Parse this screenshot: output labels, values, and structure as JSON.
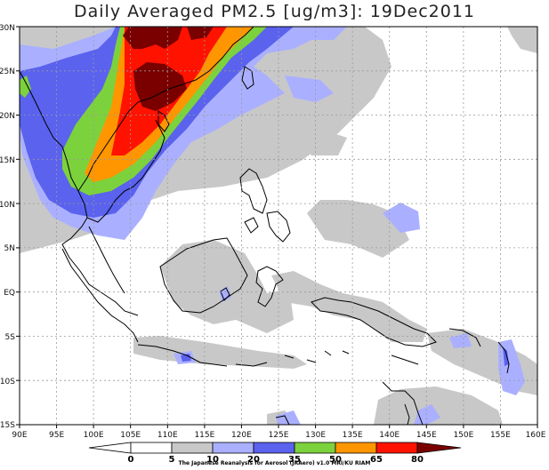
{
  "title": "Daily Averaged PM2.5 [ug/m3]: 19Dec2011",
  "axes": {
    "x_ticks": [
      "90E",
      "95E",
      "100E",
      "105E",
      "110E",
      "115E",
      "120E",
      "125E",
      "130E",
      "135E",
      "140E",
      "145E",
      "150E",
      "155E",
      "160E"
    ],
    "y_ticks": [
      "30N",
      "25N",
      "20N",
      "15N",
      "10N",
      "5N",
      "EQ",
      "5S",
      "10S",
      "15S"
    ]
  },
  "colorbar": {
    "labels": [
      "0",
      "5",
      "10",
      "20",
      "35",
      "50",
      "65",
      "80"
    ],
    "colors": [
      "#ffffff",
      "#c8c8c8",
      "#aab0ff",
      "#5a62ee",
      "#7cd23c",
      "#ff9600",
      "#ff1200",
      "#7a0000"
    ]
  },
  "credit": "The Japanese Reanalysis for Aerosol (JRAero) v1.0 MRI/KU RIAM",
  "colors": {
    "land_outline": "#000000",
    "grid": "#9a9a9a",
    "background": "#ffffff"
  }
}
